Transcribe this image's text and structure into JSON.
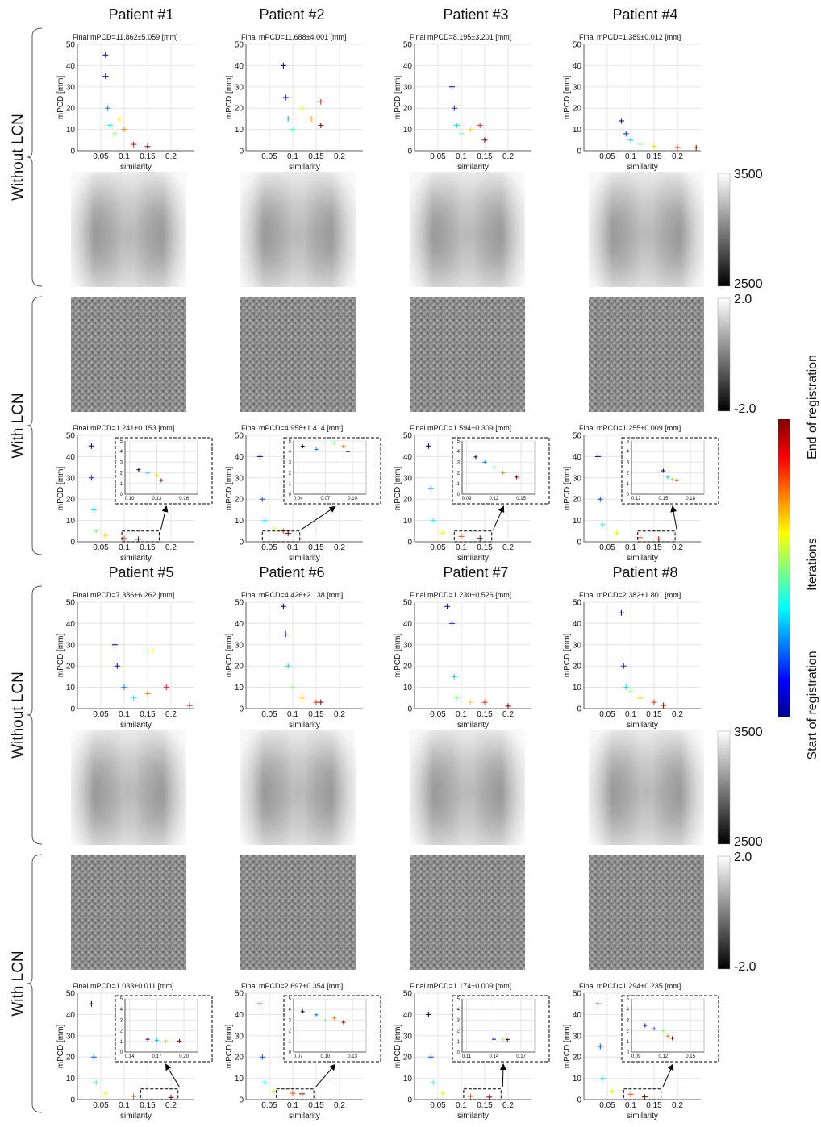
{
  "headers": [
    "Patient #1",
    "Patient #2",
    "Patient #3",
    "Patient #4",
    "Patient #5",
    "Patient #6",
    "Patient #7",
    "Patient #8"
  ],
  "row_labels": [
    "Without LCN",
    "With LCN",
    "Without LCN",
    "With LCN"
  ],
  "colorbars": [
    {
      "top": "3500",
      "bottom": "2500"
    },
    {
      "top": "2.0",
      "bottom": "-2.0"
    },
    {
      "top": "3500",
      "bottom": "2500"
    },
    {
      "top": "2.0",
      "bottom": "-2.0"
    }
  ],
  "iteration_colorbar": {
    "end": "End of registration",
    "middle": "Iterations",
    "start": "Start of registration"
  },
  "chart_data": [
    {
      "type": "scatter",
      "title": "Final mPCD=11.862±5.059 [mm]",
      "x_label": "similarity",
      "y_label": "mPCD [mm]",
      "xlim": [
        0,
        0.25
      ],
      "xticks": [
        0.05,
        0.1,
        0.15,
        0.2
      ],
      "ylim": [
        0,
        50
      ],
      "yticks": [
        0,
        10,
        20,
        30,
        40,
        50
      ],
      "grid": true,
      "x": [
        0.06,
        0.06,
        0.065,
        0.07,
        0.08,
        0.09,
        0.1,
        0.12,
        0.15
      ],
      "values": [
        45,
        35,
        20,
        12,
        8,
        15,
        10,
        3,
        2
      ]
    },
    {
      "type": "scatter",
      "title": "Final mPCD=11.688±4.001 [mm]",
      "x_label": "similarity",
      "y_label": "mPCD [mm]",
      "xlim": [
        0,
        0.25
      ],
      "xticks": [
        0.05,
        0.1,
        0.15,
        0.2
      ],
      "ylim": [
        0,
        50
      ],
      "yticks": [
        0,
        10,
        20,
        30,
        40,
        50
      ],
      "grid": true,
      "x": [
        0.08,
        0.085,
        0.09,
        0.1,
        0.12,
        0.14,
        0.16,
        0.16
      ],
      "values": [
        40,
        25,
        15,
        10,
        20,
        15,
        23,
        12
      ]
    },
    {
      "type": "scatter",
      "title": "Final mPCD=8.195±3.201 [mm]",
      "x_label": "similarity",
      "y_label": "mPCD [mm]",
      "xlim": [
        0,
        0.25
      ],
      "xticks": [
        0.05,
        0.1,
        0.15,
        0.2
      ],
      "ylim": [
        0,
        50
      ],
      "yticks": [
        0,
        10,
        20,
        30,
        40,
        50
      ],
      "grid": true,
      "x": [
        0.08,
        0.085,
        0.09,
        0.1,
        0.12,
        0.14,
        0.15
      ],
      "values": [
        30,
        20,
        12,
        8,
        10,
        12,
        5
      ]
    },
    {
      "type": "scatter",
      "title": "Final mPCD=1.389±0.012 [mm]",
      "x_label": "similarity",
      "y_label": "mPCD [mm]",
      "xlim": [
        0,
        0.25
      ],
      "xticks": [
        0.05,
        0.1,
        0.15,
        0.2
      ],
      "ylim": [
        0,
        50
      ],
      "yticks": [
        0,
        10,
        20,
        30,
        40,
        50
      ],
      "grid": true,
      "x": [
        0.08,
        0.09,
        0.1,
        0.12,
        0.15,
        0.2,
        0.24
      ],
      "values": [
        14,
        8,
        5,
        3,
        2,
        1.5,
        1.4
      ]
    },
    {
      "type": "scatter",
      "title": "Final mPCD=1.241±0.153 [mm]",
      "x_label": "similarity",
      "y_label": "mPCD [mm]",
      "xlim": [
        0,
        0.25
      ],
      "xticks": [
        0.05,
        0.1,
        0.15,
        0.2
      ],
      "ylim": [
        0,
        50
      ],
      "yticks": [
        0,
        10,
        20,
        30,
        40,
        50
      ],
      "grid": true,
      "x": [
        0.03,
        0.03,
        0.035,
        0.04,
        0.06,
        0.1,
        0.13
      ],
      "values": [
        45,
        30,
        15,
        5,
        3,
        1.5,
        1.2
      ],
      "inset": {
        "xlim": [
          0.095,
          0.175
        ],
        "xticks": [
          {
            "value": 0.1,
            "label": "0.10"
          },
          0.13,
          0.16
        ],
        "ylim": [
          0,
          5
        ],
        "yticks": [
          0,
          1,
          2,
          3,
          4,
          5
        ],
        "x": [
          0.11,
          0.12,
          0.13,
          0.135
        ],
        "values": [
          2.3,
          2,
          1.8,
          1.3
        ]
      }
    },
    {
      "type": "scatter",
      "title": "Final mPCD=4.958±1.414 [mm]",
      "x_label": "similarity",
      "y_label": "mPCD [mm]",
      "xlim": [
        0,
        0.25
      ],
      "xticks": [
        0.05,
        0.1,
        0.15,
        0.2
      ],
      "ylim": [
        0,
        50
      ],
      "yticks": [
        0,
        10,
        20,
        30,
        40,
        50
      ],
      "grid": true,
      "x": [
        0.03,
        0.035,
        0.04,
        0.06,
        0.08,
        0.09
      ],
      "values": [
        40,
        20,
        10,
        6,
        5,
        4
      ],
      "inset": {
        "xlim": [
          0.035,
          0.115
        ],
        "xticks": [
          0.04,
          0.07,
          {
            "value": 0.1,
            "label": "0.10"
          }
        ],
        "ylim": [
          0,
          5
        ],
        "yticks": [
          0,
          1,
          2,
          3,
          4,
          5
        ],
        "x": [
          0.045,
          0.06,
          0.08,
          0.09,
          0.095
        ],
        "values": [
          4.5,
          4.2,
          4.8,
          4.5,
          4
        ]
      }
    },
    {
      "type": "scatter",
      "title": "Final mPCD=1.594±0.309 [mm]",
      "x_label": "similarity",
      "y_label": "mPCD [mm]",
      "xlim": [
        0,
        0.25
      ],
      "xticks": [
        0.05,
        0.1,
        0.15,
        0.2
      ],
      "ylim": [
        0,
        50
      ],
      "yticks": [
        0,
        10,
        20,
        30,
        40,
        50
      ],
      "grid": true,
      "x": [
        0.03,
        0.035,
        0.04,
        0.06,
        0.1,
        0.14
      ],
      "values": [
        45,
        25,
        10,
        4,
        2.5,
        1.6
      ],
      "inset": {
        "xlim": [
          0.085,
          0.165
        ],
        "xticks": [
          0.09,
          0.12,
          0.15
        ],
        "ylim": [
          0,
          5
        ],
        "yticks": [
          0,
          1,
          2,
          3,
          4,
          5
        ],
        "x": [
          0.1,
          0.11,
          0.12,
          0.13,
          0.145
        ],
        "values": [
          3.5,
          3,
          2.5,
          2,
          1.6
        ]
      }
    },
    {
      "type": "scatter",
      "title": "Final mPCD=1.255±0.009 [mm]",
      "x_label": "similarity",
      "y_label": "mPCD [mm]",
      "xlim": [
        0,
        0.25
      ],
      "xticks": [
        0.05,
        0.1,
        0.15,
        0.2
      ],
      "ylim": [
        0,
        50
      ],
      "yticks": [
        0,
        10,
        20,
        30,
        40,
        50
      ],
      "grid": true,
      "x": [
        0.03,
        0.035,
        0.04,
        0.07,
        0.12,
        0.16
      ],
      "values": [
        40,
        20,
        8,
        4,
        2,
        1.3
      ],
      "inset": {
        "xlim": [
          0.115,
          0.195
        ],
        "xticks": [
          0.12,
          0.15,
          0.18
        ],
        "ylim": [
          0,
          5
        ],
        "yticks": [
          0,
          1,
          2,
          3,
          4,
          5
        ],
        "x": [
          0.15,
          0.155,
          0.16,
          0.165
        ],
        "values": [
          2.2,
          1.6,
          1.4,
          1.3
        ]
      }
    },
    {
      "type": "scatter",
      "title": "Final mPCD=7.386±6.262 [mm]",
      "x_label": "similarity",
      "y_label": "mPCD [mm]",
      "xlim": [
        0,
        0.25
      ],
      "xticks": [
        0.05,
        0.1,
        0.15,
        0.2
      ],
      "ylim": [
        0,
        50
      ],
      "yticks": [
        0,
        10,
        20,
        30,
        40,
        50
      ],
      "grid": true,
      "x": [
        0.08,
        0.085,
        0.1,
        0.12,
        0.15,
        0.16,
        0.15,
        0.19,
        0.24
      ],
      "values": [
        30,
        20,
        10,
        5,
        27,
        27,
        7,
        10,
        1.5
      ]
    },
    {
      "type": "scatter",
      "title": "Final mPCD=4.426±2.138 [mm]",
      "x_label": "similarity",
      "y_label": "mPCD [mm]",
      "xlim": [
        0,
        0.25
      ],
      "xticks": [
        0.05,
        0.1,
        0.15,
        0.2
      ],
      "ylim": [
        0,
        50
      ],
      "yticks": [
        0,
        10,
        20,
        30,
        40,
        50
      ],
      "grid": true,
      "x": [
        0.08,
        0.085,
        0.09,
        0.1,
        0.12,
        0.15,
        0.16
      ],
      "values": [
        48,
        35,
        20,
        10,
        5,
        3,
        3
      ]
    },
    {
      "type": "scatter",
      "title": "Final mPCD=1.230±0.526 [mm]",
      "x_label": "similarity",
      "y_label": "mPCD [mm]",
      "xlim": [
        0,
        0.25
      ],
      "xticks": [
        0.05,
        0.1,
        0.15,
        0.2
      ],
      "ylim": [
        0,
        50
      ],
      "yticks": [
        0,
        10,
        20,
        30,
        40,
        50
      ],
      "grid": true,
      "x": [
        0.07,
        0.08,
        0.085,
        0.09,
        0.12,
        0.15,
        0.2
      ],
      "values": [
        48,
        40,
        15,
        5,
        3,
        3,
        1.2
      ]
    },
    {
      "type": "scatter",
      "title": "Final mPCD=2.382±1.801 [mm]",
      "x_label": "similarity",
      "y_label": "mPCD [mm]",
      "xlim": [
        0,
        0.25
      ],
      "xticks": [
        0.05,
        0.1,
        0.15,
        0.2
      ],
      "ylim": [
        0,
        50
      ],
      "yticks": [
        0,
        10,
        20,
        30,
        40,
        50
      ],
      "grid": true,
      "x": [
        0.08,
        0.085,
        0.09,
        0.1,
        0.12,
        0.15,
        0.17
      ],
      "values": [
        45,
        20,
        10,
        8,
        5,
        3,
        1.5
      ]
    },
    {
      "type": "scatter",
      "title": "Final mPCD=1.033±0.011 [mm]",
      "x_label": "similarity",
      "y_label": "mPCD [mm]",
      "xlim": [
        0,
        0.25
      ],
      "xticks": [
        0.05,
        0.1,
        0.15,
        0.2
      ],
      "ylim": [
        0,
        50
      ],
      "yticks": [
        0,
        10,
        20,
        30,
        40,
        50
      ],
      "grid": true,
      "x": [
        0.03,
        0.035,
        0.04,
        0.06,
        0.12,
        0.2
      ],
      "values": [
        45,
        20,
        8,
        3,
        1.5,
        1
      ],
      "inset": {
        "xlim": [
          0.135,
          0.215
        ],
        "xticks": [
          0.14,
          0.17,
          {
            "value": 0.2,
            "label": "0.20"
          }
        ],
        "ylim": [
          0,
          5
        ],
        "yticks": [
          0,
          1,
          2,
          3,
          4,
          5
        ],
        "x": [
          0.16,
          0.17,
          0.18,
          0.195
        ],
        "values": [
          1.2,
          1.1,
          1.05,
          1.03
        ]
      }
    },
    {
      "type": "scatter",
      "title": "Final mPCD=2.697±0.354 [mm]",
      "x_label": "similarity",
      "y_label": "mPCD [mm]",
      "xlim": [
        0,
        0.25
      ],
      "xticks": [
        0.05,
        0.1,
        0.15,
        0.2
      ],
      "ylim": [
        0,
        50
      ],
      "yticks": [
        0,
        10,
        20,
        30,
        40,
        50
      ],
      "grid": true,
      "x": [
        0.03,
        0.035,
        0.04,
        0.06,
        0.1,
        0.12
      ],
      "values": [
        45,
        20,
        8,
        4,
        3,
        2.7
      ],
      "inset": {
        "xlim": [
          0.065,
          0.145
        ],
        "xticks": [
          0.07,
          {
            "value": 0.1,
            "label": "0.10"
          },
          0.13
        ],
        "ylim": [
          0,
          5
        ],
        "yticks": [
          0,
          1,
          2,
          3,
          4,
          5
        ],
        "x": [
          0.075,
          0.09,
          0.1,
          0.11,
          0.12
        ],
        "values": [
          3.8,
          3.5,
          3,
          3.2,
          2.8
        ]
      }
    },
    {
      "type": "scatter",
      "title": "Final mPCD=1.174±0.009 [mm]",
      "x_label": "similarity",
      "y_label": "mPCD [mm]",
      "xlim": [
        0,
        0.25
      ],
      "xticks": [
        0.05,
        0.1,
        0.15,
        0.2
      ],
      "ylim": [
        0,
        50
      ],
      "yticks": [
        0,
        10,
        20,
        30,
        40,
        50
      ],
      "grid": true,
      "x": [
        0.03,
        0.035,
        0.04,
        0.06,
        0.12,
        0.16
      ],
      "values": [
        40,
        20,
        8,
        3,
        1.5,
        1.2
      ],
      "inset": {
        "xlim": [
          0.105,
          0.185
        ],
        "xticks": [
          0.11,
          0.14,
          0.17
        ],
        "ylim": [
          0,
          5
        ],
        "yticks": [
          0,
          1,
          2,
          3,
          4,
          5
        ],
        "x": [
          0.14,
          0.15,
          0.155
        ],
        "values": [
          1.2,
          1.2,
          1.17
        ]
      }
    },
    {
      "type": "scatter",
      "title": "Final mPCD=1.294±0.235 [mm]",
      "x_label": "similarity",
      "y_label": "mPCD [mm]",
      "xlim": [
        0,
        0.25
      ],
      "xticks": [
        0.05,
        0.1,
        0.15,
        0.2
      ],
      "ylim": [
        0,
        50
      ],
      "yticks": [
        0,
        10,
        20,
        30,
        40,
        50
      ],
      "grid": true,
      "x": [
        0.03,
        0.035,
        0.04,
        0.06,
        0.1,
        0.13
      ],
      "values": [
        45,
        25,
        10,
        4,
        2.5,
        1.3
      ],
      "inset": {
        "xlim": [
          0.085,
          0.165
        ],
        "xticks": [
          0.09,
          0.12,
          0.15
        ],
        "ylim": [
          0,
          5
        ],
        "yticks": [
          0,
          1,
          2,
          3,
          4,
          5
        ],
        "x": [
          0.1,
          0.11,
          0.12,
          0.125,
          0.13
        ],
        "values": [
          2.5,
          2.2,
          2,
          1.5,
          1.3
        ]
      }
    }
  ]
}
